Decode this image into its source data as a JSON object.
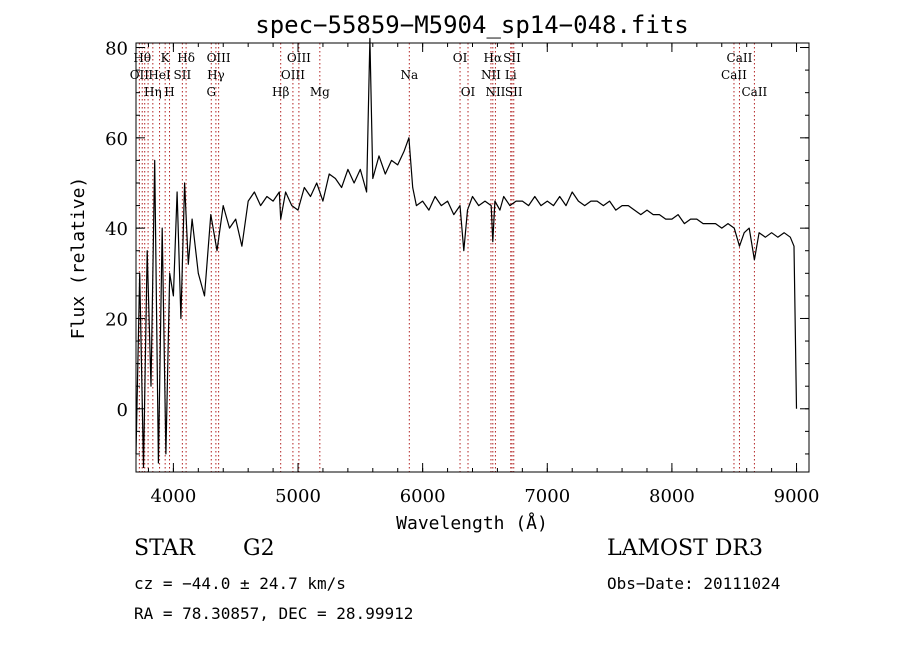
{
  "chart_data": {
    "type": "line",
    "title": "spec−55859−M5904_sp14−048.fits",
    "xlabel": "Wavelength (Å)",
    "ylabel": "Flux (relative)",
    "xlim": [
      3700,
      9100
    ],
    "ylim": [
      -14,
      81
    ],
    "xticks": [
      4000,
      5000,
      6000,
      7000,
      8000,
      9000
    ],
    "xtick_labels": [
      "4000",
      "5000",
      "6000",
      "7000",
      "8000",
      "9000"
    ],
    "yticks": [
      0,
      20,
      40,
      60,
      80
    ],
    "ytick_labels": [
      "0",
      "20",
      "40",
      "60",
      "80"
    ],
    "series": [
      {
        "name": "flux",
        "x": [
          3700,
          3730,
          3760,
          3790,
          3820,
          3850,
          3880,
          3910,
          3940,
          3970,
          4000,
          4030,
          4060,
          4090,
          4120,
          4150,
          4200,
          4250,
          4300,
          4350,
          4400,
          4450,
          4500,
          4550,
          4600,
          4650,
          4700,
          4750,
          4800,
          4850,
          4861,
          4900,
          4950,
          5000,
          5050,
          5100,
          5150,
          5200,
          5250,
          5300,
          5350,
          5400,
          5450,
          5500,
          5550,
          5577,
          5600,
          5650,
          5700,
          5750,
          5800,
          5850,
          5890,
          5920,
          5950,
          6000,
          6050,
          6100,
          6150,
          6200,
          6250,
          6300,
          6330,
          6360,
          6400,
          6450,
          6500,
          6550,
          6563,
          6580,
          6620,
          6650,
          6700,
          6750,
          6800,
          6850,
          6900,
          6950,
          7000,
          7050,
          7100,
          7150,
          7200,
          7250,
          7300,
          7350,
          7400,
          7450,
          7500,
          7550,
          7600,
          7650,
          7700,
          7750,
          7800,
          7850,
          7900,
          7950,
          8000,
          8050,
          8100,
          8150,
          8200,
          8250,
          8300,
          8350,
          8400,
          8450,
          8500,
          8542,
          8580,
          8620,
          8662,
          8700,
          8750,
          8800,
          8850,
          8900,
          8950,
          8980,
          9000
        ],
        "y": [
          -10,
          30,
          -13,
          35,
          5,
          55,
          -12,
          40,
          -10,
          30,
          25,
          48,
          20,
          50,
          32,
          42,
          30,
          25,
          43,
          35,
          45,
          40,
          42,
          36,
          46,
          48,
          45,
          47,
          46,
          48,
          42,
          48,
          45,
          44,
          49,
          47,
          50,
          46,
          52,
          51,
          49,
          53,
          50,
          53,
          48,
          82,
          51,
          56,
          52,
          55,
          54,
          57,
          60,
          49,
          45,
          46,
          44,
          47,
          45,
          46,
          43,
          45,
          35,
          44,
          47,
          45,
          46,
          45,
          37,
          46,
          44,
          47,
          45,
          46,
          46,
          45,
          47,
          45,
          46,
          45,
          47,
          45,
          48,
          46,
          45,
          46,
          46,
          45,
          46,
          44,
          45,
          45,
          44,
          43,
          44,
          43,
          43,
          42,
          42,
          43,
          41,
          42,
          42,
          41,
          41,
          41,
          40,
          41,
          40,
          36,
          39,
          40,
          33,
          39,
          38,
          39,
          38,
          39,
          38,
          36,
          0
        ]
      }
    ],
    "lines": [
      {
        "x": 3727,
        "label": "OII",
        "row": 1
      },
      {
        "x": 3750,
        "label": "Hθ",
        "row": 0
      },
      {
        "x": 3770,
        "label": "",
        "row": 0
      },
      {
        "x": 3797,
        "label": "",
        "row": 0
      },
      {
        "x": 3835,
        "label": "Hη",
        "row": 2
      },
      {
        "x": 3889,
        "label": "HeI",
        "row": 1
      },
      {
        "x": 3934,
        "label": "K",
        "row": 0
      },
      {
        "x": 3969,
        "label": "H",
        "row": 2
      },
      {
        "x": 4072,
        "label": "SII",
        "row": 1
      },
      {
        "x": 4102,
        "label": "Hδ",
        "row": 0
      },
      {
        "x": 4304,
        "label": "G",
        "row": 2
      },
      {
        "x": 4341,
        "label": "Hγ",
        "row": 1
      },
      {
        "x": 4363,
        "label": "OIII",
        "row": 0
      },
      {
        "x": 4861,
        "label": "Hβ",
        "row": 2
      },
      {
        "x": 4959,
        "label": "OIII",
        "row": 1
      },
      {
        "x": 5007,
        "label": "OIII",
        "row": 0
      },
      {
        "x": 5175,
        "label": "Mg",
        "row": 2
      },
      {
        "x": 5893,
        "label": "Na",
        "row": 1
      },
      {
        "x": 6300,
        "label": "OI",
        "row": 0
      },
      {
        "x": 6364,
        "label": "OI",
        "row": 2
      },
      {
        "x": 6548,
        "label": "NII",
        "row": 1
      },
      {
        "x": 6563,
        "label": "Hα",
        "row": 0
      },
      {
        "x": 6584,
        "label": "NII",
        "row": 2
      },
      {
        "x": 6707,
        "label": "Li",
        "row": 1
      },
      {
        "x": 6717,
        "label": "SII",
        "row": 0
      },
      {
        "x": 6731,
        "label": "SII",
        "row": 2
      },
      {
        "x": 8498,
        "label": "CaII",
        "row": 1
      },
      {
        "x": 8542,
        "label": "CaII",
        "row": 0
      },
      {
        "x": 8662,
        "label": "CaII",
        "row": 2
      }
    ]
  },
  "info": {
    "class": "STAR",
    "subclass": "G2",
    "survey": "LAMOST DR3",
    "cz": "cz = −44.0 ± 24.7 km/s",
    "obs_date": "Obs−Date: 20111024",
    "radec": "RA =  78.30857, DEC =  28.99912"
  }
}
